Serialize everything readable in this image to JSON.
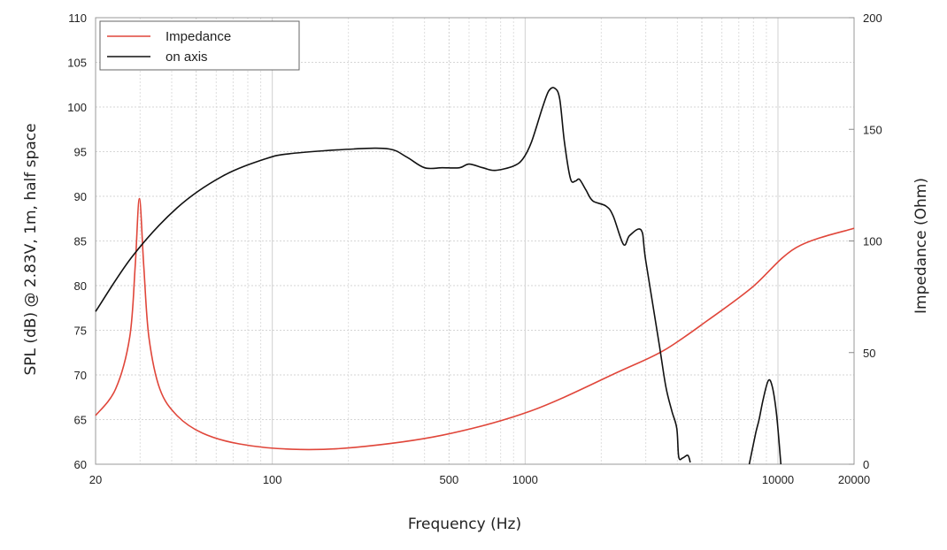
{
  "chart_data": {
    "type": "line",
    "xlabel": "Frequency (Hz)",
    "ylabel": "SPL (dB) @ 2.83V, 1m, half space",
    "y2label": "Impedance (Ohm)",
    "xscale": "log",
    "xlim": [
      20,
      20000
    ],
    "ylim": [
      60,
      110
    ],
    "y2lim": [
      0,
      200
    ],
    "grid": true,
    "legend_position": "top-left",
    "x_ticks": [
      20,
      100,
      500,
      1000,
      10000,
      20000
    ],
    "x_tick_labels": [
      "20",
      "100",
      "500",
      "1000",
      "10000",
      "20000"
    ],
    "y_ticks": [
      60,
      65,
      70,
      75,
      80,
      85,
      90,
      95,
      100,
      105,
      110
    ],
    "y2_ticks": [
      0,
      50,
      100,
      150,
      200
    ],
    "series": [
      {
        "name": "Impedance",
        "axis": "right",
        "color": "#e0463a",
        "x": [
          20,
          24,
          27.3,
          28.7,
          29.8,
          31,
          32.5,
          35.9,
          42,
          53,
          74,
          120,
          210,
          470,
          1050,
          2360,
          3540,
          5300,
          7900,
          11800,
          20000
        ],
        "y": [
          21.8,
          33.7,
          57,
          89,
          119,
          89,
          57,
          33.7,
          21.8,
          13.9,
          9.1,
          6.7,
          7.5,
          13,
          23.8,
          41.6,
          51,
          64.6,
          79.2,
          97,
          105.7
        ]
      },
      {
        "name": "on axis",
        "axis": "left",
        "color": "#111111",
        "segments": [
          {
            "x": [
              20,
              28,
              42,
              63,
              94,
              120,
              210,
              290,
              340,
              400,
              470,
              550,
              600,
              680,
              760,
              900,
              980,
              1060,
              1170,
              1240,
              1310,
              1370,
              1430,
              1510,
              1580,
              1640,
              1740,
              1850,
              2090,
              2230,
              2450,
              2590,
              2880,
              3000,
              3400,
              3600,
              3800,
              3980,
              4050,
              4200,
              4400,
              4500
            ],
            "y": [
              77.1,
              83.3,
              88.7,
              92.2,
              94.2,
              94.8,
              95.3,
              95.3,
              94.4,
              93.2,
              93.2,
              93.2,
              93.6,
              93.2,
              92.9,
              93.4,
              94.2,
              96.1,
              99.9,
              101.8,
              102.1,
              100.9,
              96.1,
              92.0,
              91.7,
              91.9,
              90.7,
              89.5,
              88.9,
              87.8,
              84.6,
              85.6,
              86.2,
              82.8,
              73.2,
              68.7,
              66.0,
              64.0,
              60.8,
              60.7,
              61.0,
              60.2
            ]
          },
          {
            "x": [
              7700,
              8170,
              8420,
              8760,
              9170,
              9510,
              9880,
              10270
            ],
            "y": [
              60,
              63.5,
              65,
              67.4,
              69.4,
              68.6,
              65.5,
              60
            ]
          }
        ]
      }
    ]
  }
}
